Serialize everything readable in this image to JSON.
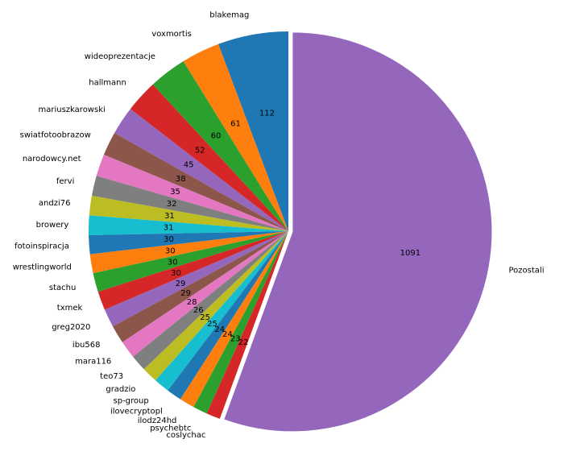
{
  "chart_data": {
    "type": "pie",
    "title": "",
    "start_angle_deg": 90,
    "direction": "counterclockwise",
    "labels": [
      "blakemag",
      "voxmortis",
      "wideoprezentacje",
      "hallmann",
      "mariuszkarowski",
      "swiatfotoobrazow",
      "narodowcy.net",
      "fervi",
      "andzi76",
      "browery",
      "fotoinspiracja",
      "wrestlingworld",
      "stachu",
      "txmek",
      "greg2020",
      "ibu568",
      "mara116",
      "teo73",
      "gradzio",
      "sp-group",
      "ilovecryptopl",
      "ilodz24hd",
      "psychebtc",
      "coslychac",
      "Pozostali"
    ],
    "values": [
      112,
      61,
      60,
      52,
      45,
      38,
      35,
      32,
      31,
      31,
      30,
      30,
      30,
      30,
      29,
      29,
      28,
      26,
      25,
      25,
      24,
      24,
      23,
      22,
      1091
    ],
    "value_labels": [
      "112",
      "61",
      "60",
      "52",
      "45",
      "38",
      "35",
      "32",
      "31",
      "31",
      "30",
      "30",
      "30",
      "30",
      "29",
      "29",
      "28",
      "26",
      "25",
      "25",
      "24",
      "24",
      "23",
      "22",
      "1091"
    ],
    "exploded": [
      "Pozostali"
    ],
    "colors": [
      "#1f77b4",
      "#ff7f0e",
      "#2ca02c",
      "#d62728",
      "#9467bd",
      "#8c564b",
      "#e377c2",
      "#7f7f7f",
      "#bcbd22",
      "#17becf"
    ]
  }
}
